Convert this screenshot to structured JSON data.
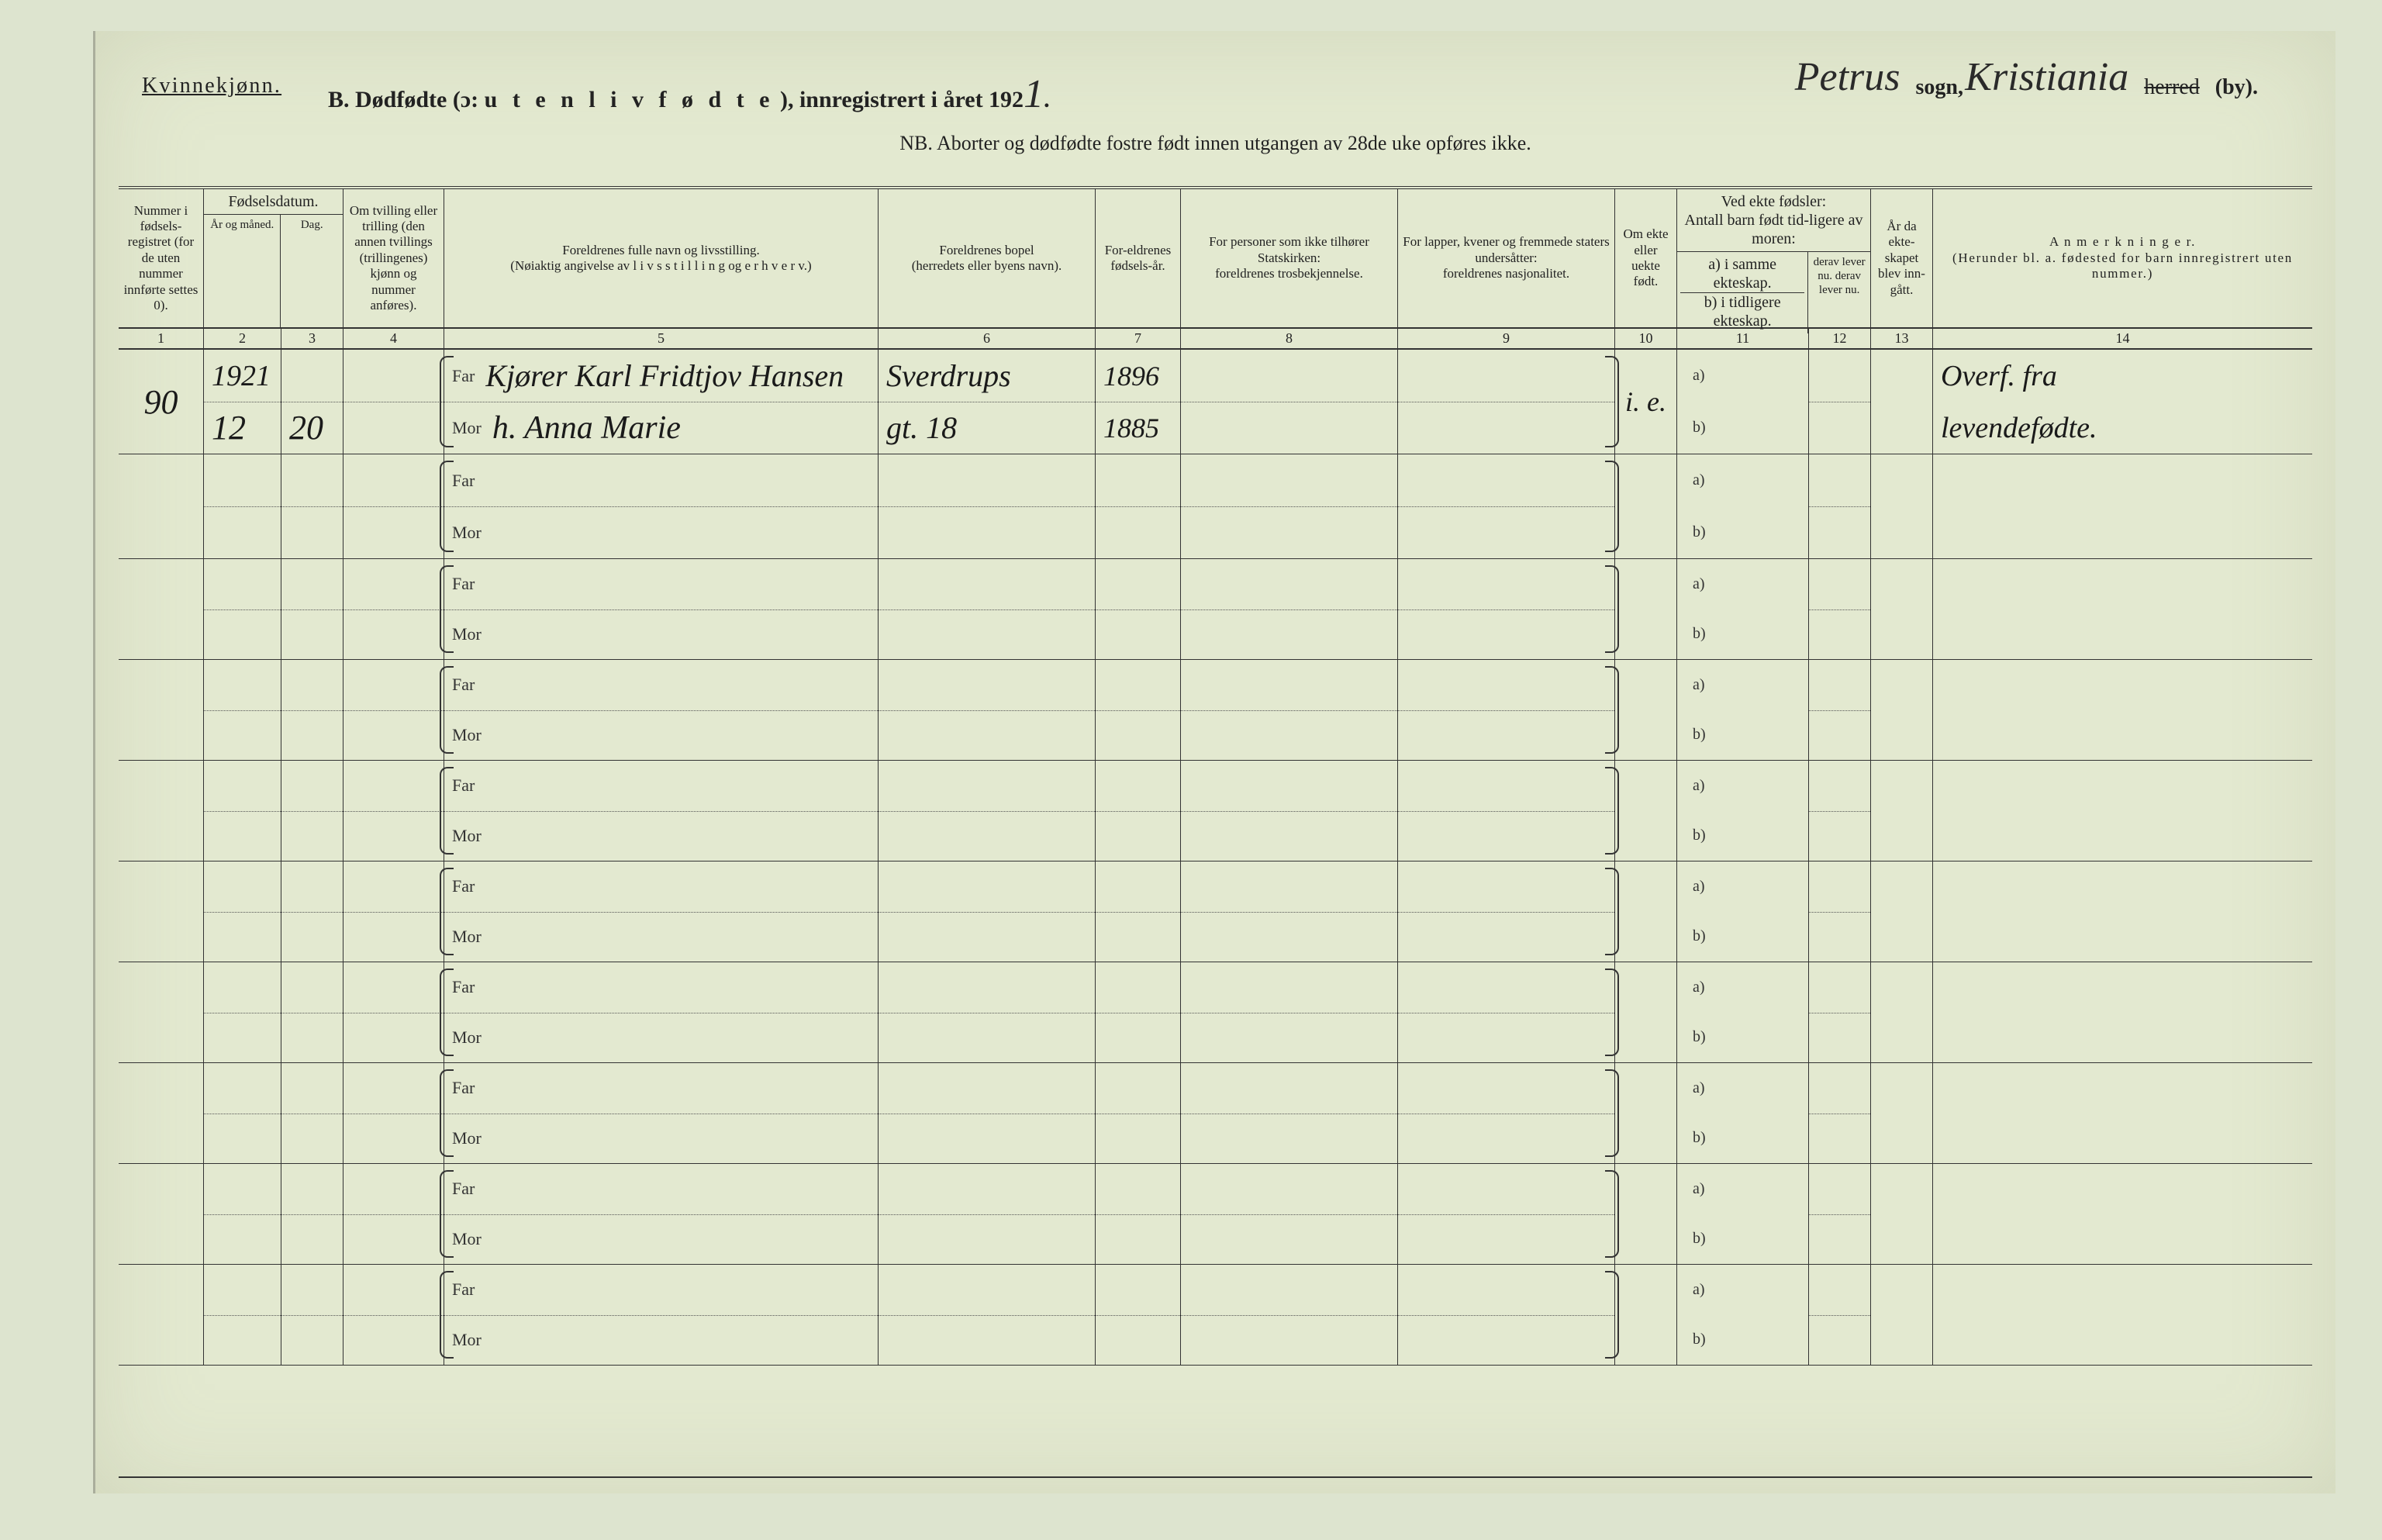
{
  "header": {
    "gender": "Kvinnekjønn.",
    "title_prefix": "B.  Dødfødte (ɔ:",
    "title_spaced": " u t e n   l i v   f ø d t e",
    "title_suffix": "), innregistrert i året 192",
    "year_suffix": "1",
    "sogn_hw": "Petrus",
    "sogn_label": "sogn,",
    "by_hw": "Kristiania",
    "herred_struck": "herred",
    "by_label": "(by).",
    "sub": "NB.   Aborter og dødfødte fostre født innen utgangen av 28de uke opføres ikke."
  },
  "columns": {
    "h1": "Nummer i fødsels-registret (for de uten nummer innførte settes 0).",
    "h2_top": "Fødselsdatum.",
    "h2a": "År og måned.",
    "h2b": "Dag.",
    "h4": "Om tvilling eller trilling (den annen tvillings (trillingenes) kjønn og nummer anføres).",
    "h5": "Foreldrenes fulle navn og livsstilling.\n(Nøiaktig angivelse av l i v s s t i l l i n g og e r h v e r v.)",
    "h6": "Foreldrenes bopel\n(herredets eller byens navn).",
    "h7": "For-eldrenes fødsels-år.",
    "h8": "For personer som ikke tilhører Statskirken:\nforeldrenes trosbekjennelse.",
    "h9": "For lapper, kvener og fremmede staters undersåtter:\nforeldrenes nasjonalitet.",
    "h10": "Om ekte eller uekte født.",
    "h11_top": "Ved ekte fødsler:\nAntall barn født tid-ligere av moren:",
    "h11a": "a) i samme ekteskap.",
    "h11b": "b) i tidligere ekteskap.",
    "h12": "derav lever nu. derav lever nu.",
    "h13": "År da ekte-skapet blev inn-gått.",
    "h14": "A n m e r k n i n g e r.\n(Herunder bl. a. fødested for barn innregistrert uten nummer.)",
    "nums": [
      "1",
      "2",
      "3",
      "4",
      "5",
      "6",
      "7",
      "8",
      "9",
      "10",
      "11",
      "12",
      "13",
      "14"
    ]
  },
  "labels": {
    "far": "Far",
    "mor": "Mor",
    "a": "a)",
    "b": "b)"
  },
  "row1": {
    "num": "90",
    "year": "1921",
    "month": "12",
    "day": "20",
    "far_name": "Kjører Karl Fridtjov Hansen",
    "mor_name": "h.   Anna Marie",
    "far_bopel": "Sverdrups",
    "mor_bopel": "gt. 18",
    "far_year": "1896",
    "mor_year": "1885",
    "ekte": "i. e.",
    "anm1": "Overf. fra",
    "anm2": "levendefødte."
  },
  "colors": {
    "paper": "#e3e9d0",
    "ink": "#222222",
    "rule": "#333333"
  }
}
